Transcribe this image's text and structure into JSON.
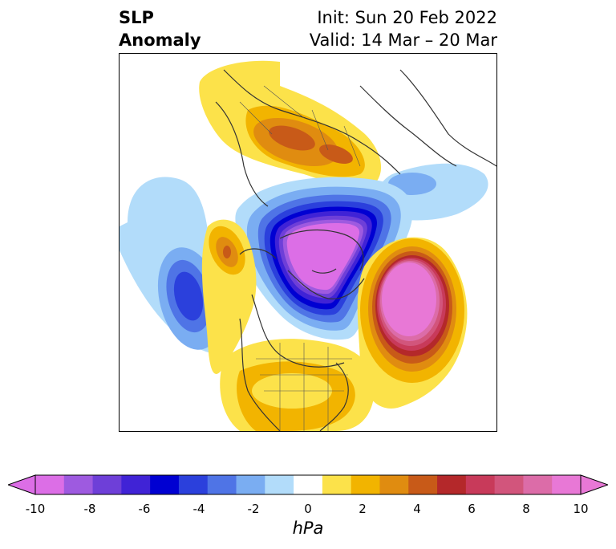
{
  "title": {
    "left_line1": "SLP",
    "left_line2": "Anomaly",
    "right_line1": "Init: Sun 20 Feb 2022",
    "right_line2": "Valid: 14 Mar – 20 Mar"
  },
  "map": {
    "projection": "north-polar",
    "features": [
      {
        "name": "North Pacific negative anomaly",
        "min_hPa": -6
      },
      {
        "name": "Arctic / Greenland negative anomaly",
        "min_hPa": -10
      },
      {
        "name": "Eastern Europe / Russia positive anomaly",
        "max_hPa": 6
      },
      {
        "name": "North Atlantic positive anomaly",
        "max_hPa": 10
      },
      {
        "name": "Western North America positive anomaly",
        "max_hPa": 4
      },
      {
        "name": "Central / Eastern US positive anomaly",
        "max_hPa": 2
      }
    ]
  },
  "colorbar": {
    "colors": [
      "#dc6ee6",
      "#9e5ae0",
      "#6e3fd8",
      "#4023d6",
      "#0000d2",
      "#2b40dc",
      "#4f74e6",
      "#7aadf2",
      "#b2dcfa",
      "#ffffff",
      "#fce24a",
      "#f2b400",
      "#e08c10",
      "#c85a18",
      "#b4282a",
      "#c83a5a",
      "#d2557c",
      "#dc6ca8",
      "#e878d6"
    ],
    "ticks": [
      "-10",
      "-8",
      "-6",
      "-4",
      "-2",
      "0",
      "2",
      "4",
      "6",
      "8",
      "10"
    ],
    "unit": "hPa",
    "range": [
      -10,
      10
    ]
  }
}
